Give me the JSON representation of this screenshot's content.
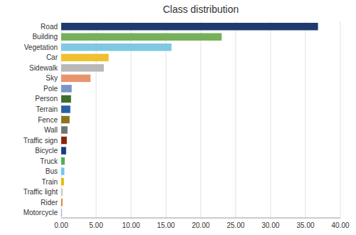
{
  "chart_data": {
    "type": "bar",
    "orientation": "horizontal",
    "title": "Class distribution",
    "categories": [
      "Road",
      "Building",
      "Vegetation",
      "Car",
      "Sidewalk",
      "Sky",
      "Pole",
      "Person",
      "Terrain",
      "Fence",
      "Wall",
      "Traffic sign",
      "Bicycle",
      "Truck",
      "Bus",
      "Train",
      "Traffic light",
      "Rider",
      "Motorcycle"
    ],
    "values": [
      36.8,
      23.0,
      15.8,
      6.8,
      6.1,
      4.2,
      1.5,
      1.4,
      1.3,
      1.2,
      0.9,
      0.8,
      0.7,
      0.5,
      0.45,
      0.38,
      0.22,
      0.18,
      0.12
    ],
    "colors": [
      "#1f3a6e",
      "#77b05a",
      "#7ec8e3",
      "#f0c030",
      "#b8b8b8",
      "#e8956d",
      "#7b93c8",
      "#3d6e2e",
      "#2b5fa5",
      "#8b7320",
      "#737373",
      "#8b2500",
      "#1a3a8a",
      "#4caf50",
      "#6ec6f5",
      "#e6b800",
      "#c8c8c8",
      "#e07820",
      "#9ab8d8"
    ],
    "xlim": [
      0,
      40
    ],
    "xticks": [
      {
        "value": 0.0,
        "label": "0.00"
      },
      {
        "value": 5.0,
        "label": "5.00"
      },
      {
        "value": 10.0,
        "label": "10.00"
      },
      {
        "value": 15.0,
        "label": "15.00"
      },
      {
        "value": 20.0,
        "label": "20.00"
      },
      {
        "value": 25.0,
        "label": "25.00"
      },
      {
        "value": 30.0,
        "label": "30.00"
      },
      {
        "value": 35.0,
        "label": "35.00"
      },
      {
        "value": 40.0,
        "label": "40.00"
      }
    ],
    "grid": true
  }
}
